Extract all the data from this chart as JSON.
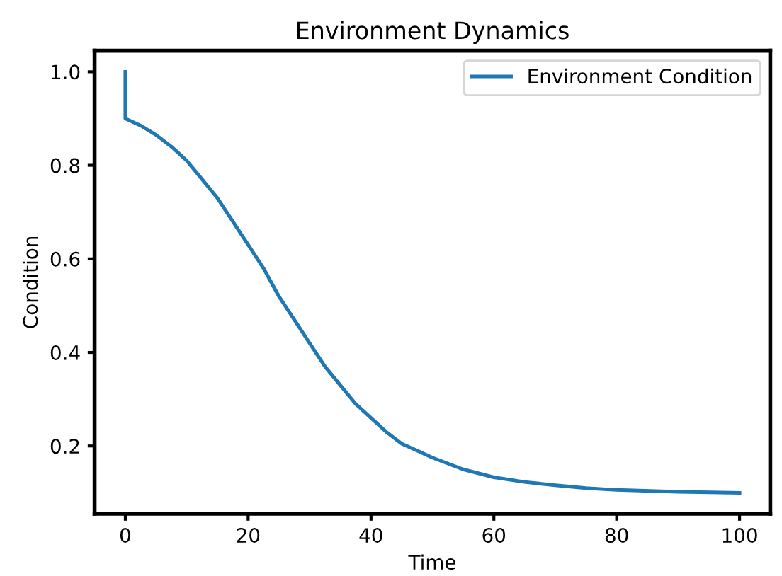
{
  "chart_data": {
    "type": "line",
    "title": "Environment Dynamics",
    "xlabel": "Time",
    "ylabel": "Condition",
    "x": [
      0,
      0,
      2.5,
      5,
      7.5,
      10,
      12.5,
      15,
      17.5,
      20,
      22.5,
      25,
      27.5,
      30,
      32.5,
      35,
      37.5,
      40,
      42.5,
      45,
      47.5,
      50,
      55,
      60,
      65,
      70,
      75,
      80,
      90,
      100
    ],
    "series": [
      {
        "name": "Environment Condition",
        "color": "#1f77b4",
        "values": [
          1.0,
          0.9,
          0.885,
          0.865,
          0.84,
          0.81,
          0.77,
          0.73,
          0.68,
          0.63,
          0.58,
          0.52,
          0.47,
          0.42,
          0.37,
          0.33,
          0.29,
          0.26,
          0.23,
          0.205,
          0.19,
          0.175,
          0.15,
          0.133,
          0.123,
          0.116,
          0.11,
          0.106,
          0.102,
          0.1
        ]
      }
    ],
    "xlim": [
      -5,
      105
    ],
    "ylim": [
      0.055,
      1.045
    ],
    "xticks": [
      0,
      20,
      40,
      60,
      80,
      100
    ],
    "yticks": [
      0.2,
      0.4,
      0.6,
      0.8,
      {
        "value": 1,
        "label": "1.0"
      }
    ],
    "grid": false,
    "legend": "top right",
    "line_style": "solid",
    "marker": "none"
  }
}
